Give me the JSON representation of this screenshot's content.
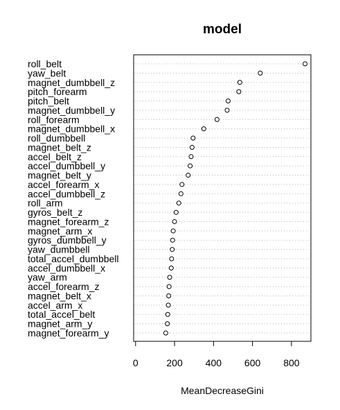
{
  "chart_data": {
    "type": "dotchart",
    "title": "model",
    "xlabel": "MeanDecreaseGini",
    "ylabel": "",
    "xlim": [
      -10,
      900
    ],
    "xticks": [
      0,
      200,
      400,
      600,
      800
    ],
    "grid": "dotted horizontal",
    "legend": "none",
    "categories": [
      "roll_belt",
      "yaw_belt",
      "magnet_dumbbell_z",
      "pitch_forearm",
      "pitch_belt",
      "magnet_dumbbell_y",
      "roll_forearm",
      "magnet_dumbbell_x",
      "roll_dumbbell",
      "magnet_belt_z",
      "accel_belt_z",
      "accel_dumbbell_y",
      "magnet_belt_y",
      "accel_forearm_x",
      "accel_dumbbell_z",
      "roll_arm",
      "gyros_belt_z",
      "magnet_forearm_z",
      "magnet_arm_x",
      "gyros_dumbbell_y",
      "yaw_dumbbell",
      "total_accel_dumbbell",
      "accel_dumbbell_x",
      "yaw_arm",
      "accel_forearm_z",
      "magnet_belt_x",
      "accel_arm_x",
      "total_accel_belt",
      "magnet_arm_y",
      "magnet_forearm_y"
    ],
    "values": [
      870,
      640,
      535,
      530,
      475,
      470,
      418,
      350,
      295,
      290,
      285,
      280,
      270,
      238,
      233,
      222,
      208,
      200,
      193,
      190,
      188,
      185,
      183,
      175,
      172,
      170,
      168,
      165,
      163,
      155
    ]
  }
}
